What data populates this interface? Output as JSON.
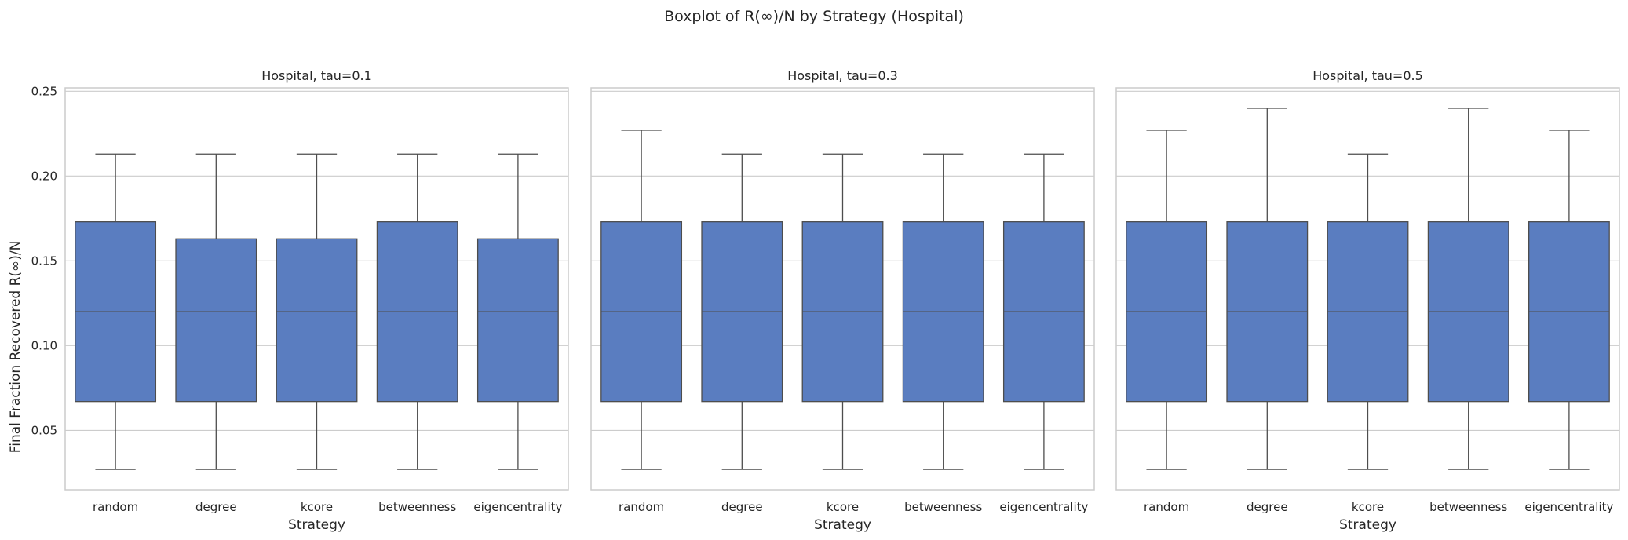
{
  "chart_data": {
    "type": "boxplot",
    "title": "Boxplot of R(∞)/N by Strategy (Hospital)",
    "ylabel": "Final Fraction Recovered R(∞)/N",
    "ylim": [
      0.015,
      0.252
    ],
    "yticks": [
      "0.05",
      "0.10",
      "0.15",
      "0.20",
      "0.25"
    ],
    "yticks_values": [
      0.05,
      0.1,
      0.15,
      0.2,
      0.25
    ],
    "grid": true,
    "box_color": "#5a7dc0",
    "line_color": "#4d4d4d",
    "panels": [
      {
        "title": "Hospital, tau=0.1",
        "xlabel": "Strategy",
        "categories": [
          "random",
          "degree",
          "kcore",
          "betweenness",
          "eigencentrality"
        ],
        "boxes": [
          {
            "whislo": 0.027,
            "q1": 0.067,
            "med": 0.12,
            "q3": 0.173,
            "whishi": 0.213
          },
          {
            "whislo": 0.027,
            "q1": 0.067,
            "med": 0.12,
            "q3": 0.163,
            "whishi": 0.213
          },
          {
            "whislo": 0.027,
            "q1": 0.067,
            "med": 0.12,
            "q3": 0.163,
            "whishi": 0.213
          },
          {
            "whislo": 0.027,
            "q1": 0.067,
            "med": 0.12,
            "q3": 0.173,
            "whishi": 0.213
          },
          {
            "whislo": 0.027,
            "q1": 0.067,
            "med": 0.12,
            "q3": 0.163,
            "whishi": 0.213
          }
        ]
      },
      {
        "title": "Hospital, tau=0.3",
        "xlabel": "Strategy",
        "categories": [
          "random",
          "degree",
          "kcore",
          "betweenness",
          "eigencentrality"
        ],
        "boxes": [
          {
            "whislo": 0.027,
            "q1": 0.067,
            "med": 0.12,
            "q3": 0.173,
            "whishi": 0.227
          },
          {
            "whislo": 0.027,
            "q1": 0.067,
            "med": 0.12,
            "q3": 0.173,
            "whishi": 0.213
          },
          {
            "whislo": 0.027,
            "q1": 0.067,
            "med": 0.12,
            "q3": 0.173,
            "whishi": 0.213
          },
          {
            "whislo": 0.027,
            "q1": 0.067,
            "med": 0.12,
            "q3": 0.173,
            "whishi": 0.213
          },
          {
            "whislo": 0.027,
            "q1": 0.067,
            "med": 0.12,
            "q3": 0.173,
            "whishi": 0.213
          }
        ]
      },
      {
        "title": "Hospital, tau=0.5",
        "xlabel": "Strategy",
        "categories": [
          "random",
          "degree",
          "kcore",
          "betweenness",
          "eigencentrality"
        ],
        "boxes": [
          {
            "whislo": 0.027,
            "q1": 0.067,
            "med": 0.12,
            "q3": 0.173,
            "whishi": 0.227
          },
          {
            "whislo": 0.027,
            "q1": 0.067,
            "med": 0.12,
            "q3": 0.173,
            "whishi": 0.24
          },
          {
            "whislo": 0.027,
            "q1": 0.067,
            "med": 0.12,
            "q3": 0.173,
            "whishi": 0.213
          },
          {
            "whislo": 0.027,
            "q1": 0.067,
            "med": 0.12,
            "q3": 0.173,
            "whishi": 0.24
          },
          {
            "whislo": 0.027,
            "q1": 0.067,
            "med": 0.12,
            "q3": 0.173,
            "whishi": 0.227
          }
        ]
      }
    ]
  }
}
